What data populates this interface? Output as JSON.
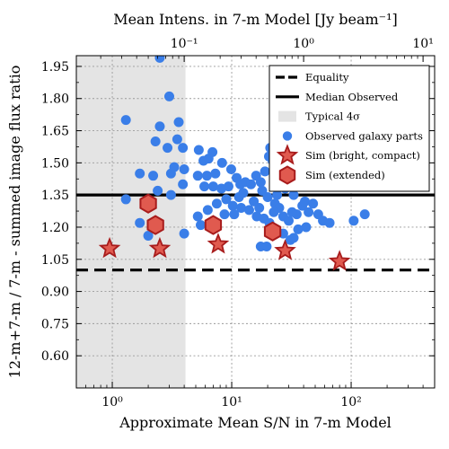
{
  "chart_data": {
    "type": "scatter",
    "xlabel": "Approximate Mean S/N in 7-m Model",
    "ylabel": "12-m+7-m / 7-m - summed image flux ratio",
    "top_xlabel": "Mean Intens. in 7-m Model [Jy beam⁻¹]",
    "xscale": "log",
    "xlim": [
      0.5,
      500
    ],
    "ylim": [
      0.45,
      2.0
    ],
    "x_ticks": [
      1,
      10,
      100
    ],
    "x_tick_labels": [
      "10⁰",
      "10¹",
      "10²"
    ],
    "y_ticks": [
      0.6,
      0.75,
      0.9,
      1.05,
      1.2,
      1.35,
      1.5,
      1.65,
      1.8,
      1.95
    ],
    "y_tick_labels": [
      "0.60",
      "0.75",
      "0.90",
      "1.05",
      "1.20",
      "1.35",
      "1.50",
      "1.65",
      "1.80",
      "1.95"
    ],
    "top_x_ticks_at_bottom_scale": [
      4,
      40,
      400
    ],
    "top_x_tick_labels": [
      "10⁻¹",
      "10⁰",
      "10¹"
    ],
    "grid": true,
    "legend_position": "top-right",
    "legend": [
      "Equality",
      "Median Observed",
      "Typical 4σ",
      "Observed galaxy parts",
      "Sim (bright, compact)",
      "Sim (extended)"
    ],
    "equality_y": 1.0,
    "median_observed_y": 1.35,
    "typical_4sigma_x": [
      0.5,
      4.1
    ],
    "colors": {
      "observed": "#3a7ee8",
      "sim": "#e05a4f",
      "sim_edge": "#a81c1c",
      "shade": "#e4e4e4"
    },
    "series": [
      {
        "name": "Observed galaxy parts",
        "marker": "circle",
        "points": [
          [
            2.5,
            1.99
          ],
          [
            3.0,
            1.81
          ],
          [
            1.3,
            1.7
          ],
          [
            2.5,
            1.67
          ],
          [
            3.6,
            1.69
          ],
          [
            2.9,
            1.57
          ],
          [
            2.3,
            1.6
          ],
          [
            3.5,
            1.61
          ],
          [
            3.9,
            1.57
          ],
          [
            5.3,
            1.56
          ],
          [
            5.8,
            1.51
          ],
          [
            6.4,
            1.52
          ],
          [
            6.9,
            1.55
          ],
          [
            8.3,
            1.5
          ],
          [
            1.7,
            1.45
          ],
          [
            2.2,
            1.44
          ],
          [
            3.1,
            1.45
          ],
          [
            3.3,
            1.48
          ],
          [
            4.0,
            1.47
          ],
          [
            5.2,
            1.44
          ],
          [
            6.2,
            1.44
          ],
          [
            7.3,
            1.45
          ],
          [
            9.9,
            1.47
          ],
          [
            3.9,
            1.4
          ],
          [
            1.3,
            1.33
          ],
          [
            2.4,
            1.37
          ],
          [
            3.1,
            1.35
          ],
          [
            5.9,
            1.39
          ],
          [
            7.0,
            1.39
          ],
          [
            8.2,
            1.38
          ],
          [
            11.0,
            1.43
          ],
          [
            11.8,
            1.4
          ],
          [
            13.0,
            1.41
          ],
          [
            14.5,
            1.4
          ],
          [
            16.0,
            1.44
          ],
          [
            17.5,
            1.41
          ],
          [
            19.0,
            1.46
          ],
          [
            20.5,
            1.53
          ],
          [
            21.0,
            1.57
          ],
          [
            22.0,
            1.51
          ],
          [
            25.0,
            1.54
          ],
          [
            26.5,
            1.56
          ],
          [
            29.0,
            1.52
          ],
          [
            31.0,
            1.55
          ],
          [
            18.0,
            1.37
          ],
          [
            20.0,
            1.34
          ],
          [
            23.0,
            1.31
          ],
          [
            25.0,
            1.29
          ],
          [
            27.0,
            1.25
          ],
          [
            30.0,
            1.23
          ],
          [
            35.0,
            1.26
          ],
          [
            39.0,
            1.3
          ],
          [
            41.0,
            1.32
          ],
          [
            44.0,
            1.27
          ],
          [
            53.0,
            1.26
          ],
          [
            58.0,
            1.23
          ],
          [
            66.0,
            1.22
          ],
          [
            130.0,
            1.26
          ],
          [
            105.0,
            1.23
          ],
          [
            9.0,
            1.33
          ],
          [
            10.2,
            1.3
          ],
          [
            11.5,
            1.34
          ],
          [
            12.5,
            1.36
          ],
          [
            9.4,
            1.39
          ],
          [
            12.0,
            1.29
          ],
          [
            14.0,
            1.28
          ],
          [
            15.3,
            1.32
          ],
          [
            17.0,
            1.29
          ],
          [
            18.6,
            1.24
          ],
          [
            20.7,
            1.22
          ],
          [
            6.3,
            1.28
          ],
          [
            5.2,
            1.25
          ],
          [
            8.7,
            1.26
          ],
          [
            10.5,
            1.26
          ],
          [
            7.5,
            1.31
          ],
          [
            1.7,
            1.22
          ],
          [
            2.0,
            1.16
          ],
          [
            4.0,
            1.17
          ],
          [
            5.5,
            1.21
          ],
          [
            7.0,
            1.23
          ],
          [
            17.5,
            1.11
          ],
          [
            27.0,
            1.17
          ],
          [
            31.0,
            1.14
          ],
          [
            33.0,
            1.15
          ],
          [
            36.0,
            1.19
          ],
          [
            22.5,
            1.27
          ],
          [
            24.0,
            1.35
          ],
          [
            32.0,
            1.27
          ],
          [
            42.0,
            1.2
          ],
          [
            48.0,
            1.31
          ],
          [
            28.0,
            1.38
          ],
          [
            33.0,
            1.35
          ],
          [
            16.2,
            1.25
          ],
          [
            19.6,
            1.11
          ]
        ]
      },
      {
        "name": "Sim (bright, compact)",
        "marker": "star",
        "points": [
          [
            0.95,
            1.1
          ],
          [
            2.5,
            1.1
          ],
          [
            7.7,
            1.12
          ],
          [
            28.0,
            1.09
          ],
          [
            80.0,
            1.04
          ]
        ]
      },
      {
        "name": "Sim (extended)",
        "marker": "hexagon",
        "points": [
          [
            2.0,
            1.31
          ],
          [
            2.3,
            1.21
          ],
          [
            7.0,
            1.21
          ],
          [
            22.0,
            1.18
          ]
        ]
      }
    ]
  }
}
